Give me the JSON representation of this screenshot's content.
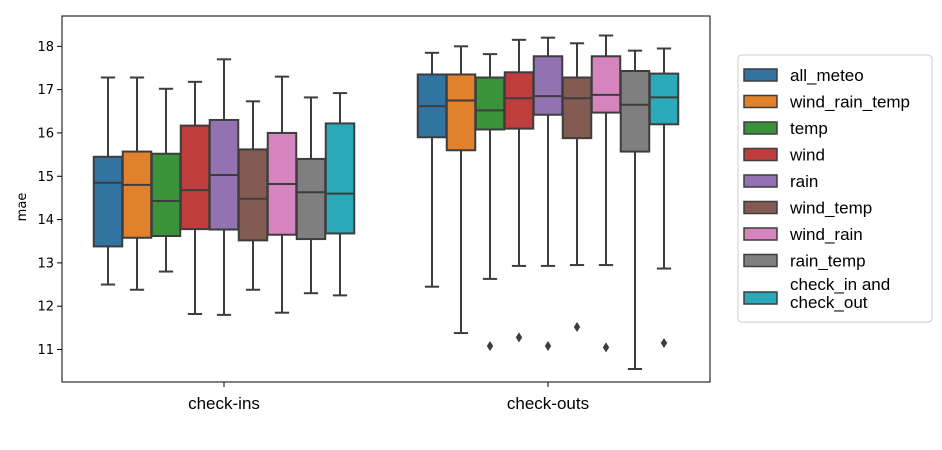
{
  "chart_data": {
    "type": "box",
    "ylabel": "mae",
    "xlabel": "",
    "ylim": [
      10.25,
      18.7
    ],
    "yticks": [
      11,
      12,
      13,
      14,
      15,
      16,
      17,
      18
    ],
    "categories": [
      "check-ins",
      "check-outs"
    ],
    "legend_position": "right, outside plot",
    "series": [
      {
        "name": "all_meteo",
        "color": "#3274a1",
        "boxes": [
          {
            "whislo": 12.5,
            "q1": 13.38,
            "med": 14.85,
            "q3": 15.45,
            "whishi": 17.28,
            "fliers": []
          },
          {
            "whislo": 12.45,
            "q1": 15.9,
            "med": 16.62,
            "q3": 17.35,
            "whishi": 17.85,
            "fliers": []
          }
        ]
      },
      {
        "name": "wind_rain_temp",
        "color": "#e1812c",
        "boxes": [
          {
            "whislo": 12.38,
            "q1": 13.58,
            "med": 14.8,
            "q3": 15.57,
            "whishi": 17.28,
            "fliers": []
          },
          {
            "whislo": 11.38,
            "q1": 15.6,
            "med": 16.75,
            "q3": 17.35,
            "whishi": 18.0,
            "fliers": []
          }
        ]
      },
      {
        "name": "temp",
        "color": "#3a923a",
        "boxes": [
          {
            "whislo": 12.8,
            "q1": 13.62,
            "med": 14.43,
            "q3": 15.52,
            "whishi": 17.02,
            "fliers": []
          },
          {
            "whislo": 12.63,
            "q1": 16.08,
            "med": 16.52,
            "q3": 17.28,
            "whishi": 17.82,
            "fliers": [
              11.08
            ]
          }
        ]
      },
      {
        "name": "wind",
        "color": "#c03d3e",
        "boxes": [
          {
            "whislo": 11.82,
            "q1": 13.78,
            "med": 14.68,
            "q3": 16.17,
            "whishi": 17.18,
            "fliers": []
          },
          {
            "whislo": 12.93,
            "q1": 16.1,
            "med": 16.8,
            "q3": 17.4,
            "whishi": 18.15,
            "fliers": [
              11.28
            ]
          }
        ]
      },
      {
        "name": "rain",
        "color": "#9372b2",
        "boxes": [
          {
            "whislo": 11.8,
            "q1": 13.77,
            "med": 15.03,
            "q3": 16.3,
            "whishi": 17.7,
            "fliers": []
          },
          {
            "whislo": 12.93,
            "q1": 16.42,
            "med": 16.85,
            "q3": 17.77,
            "whishi": 18.2,
            "fliers": [
              11.08
            ]
          }
        ]
      },
      {
        "name": "wind_temp",
        "color": "#845b53",
        "boxes": [
          {
            "whislo": 12.38,
            "q1": 13.52,
            "med": 14.48,
            "q3": 15.62,
            "whishi": 16.73,
            "fliers": []
          },
          {
            "whislo": 12.95,
            "q1": 15.88,
            "med": 16.8,
            "q3": 17.28,
            "whishi": 18.07,
            "fliers": [
              11.52
            ]
          }
        ]
      },
      {
        "name": "wind_rain",
        "color": "#d684bd",
        "boxes": [
          {
            "whislo": 11.85,
            "q1": 13.65,
            "med": 14.82,
            "q3": 16.0,
            "whishi": 17.3,
            "fliers": []
          },
          {
            "whislo": 12.95,
            "q1": 16.47,
            "med": 16.88,
            "q3": 17.77,
            "whishi": 18.25,
            "fliers": [
              11.05
            ]
          }
        ]
      },
      {
        "name": "rain_temp",
        "color": "#7f7f7f",
        "boxes": [
          {
            "whislo": 12.3,
            "q1": 13.55,
            "med": 14.63,
            "q3": 15.4,
            "whishi": 16.82,
            "fliers": []
          },
          {
            "whislo": 10.55,
            "q1": 15.57,
            "med": 16.65,
            "q3": 17.43,
            "whishi": 17.9,
            "fliers": []
          }
        ]
      },
      {
        "name": "check_in and check_out",
        "label_lines": [
          "check_in and",
          "check_out"
        ],
        "color": "#2ca9b8",
        "boxes": [
          {
            "whislo": 12.25,
            "q1": 13.68,
            "med": 14.6,
            "q3": 16.22,
            "whishi": 16.92,
            "fliers": []
          },
          {
            "whislo": 12.87,
            "q1": 16.2,
            "med": 16.82,
            "q3": 17.37,
            "whishi": 17.95,
            "fliers": [
              11.15
            ]
          }
        ]
      }
    ]
  }
}
